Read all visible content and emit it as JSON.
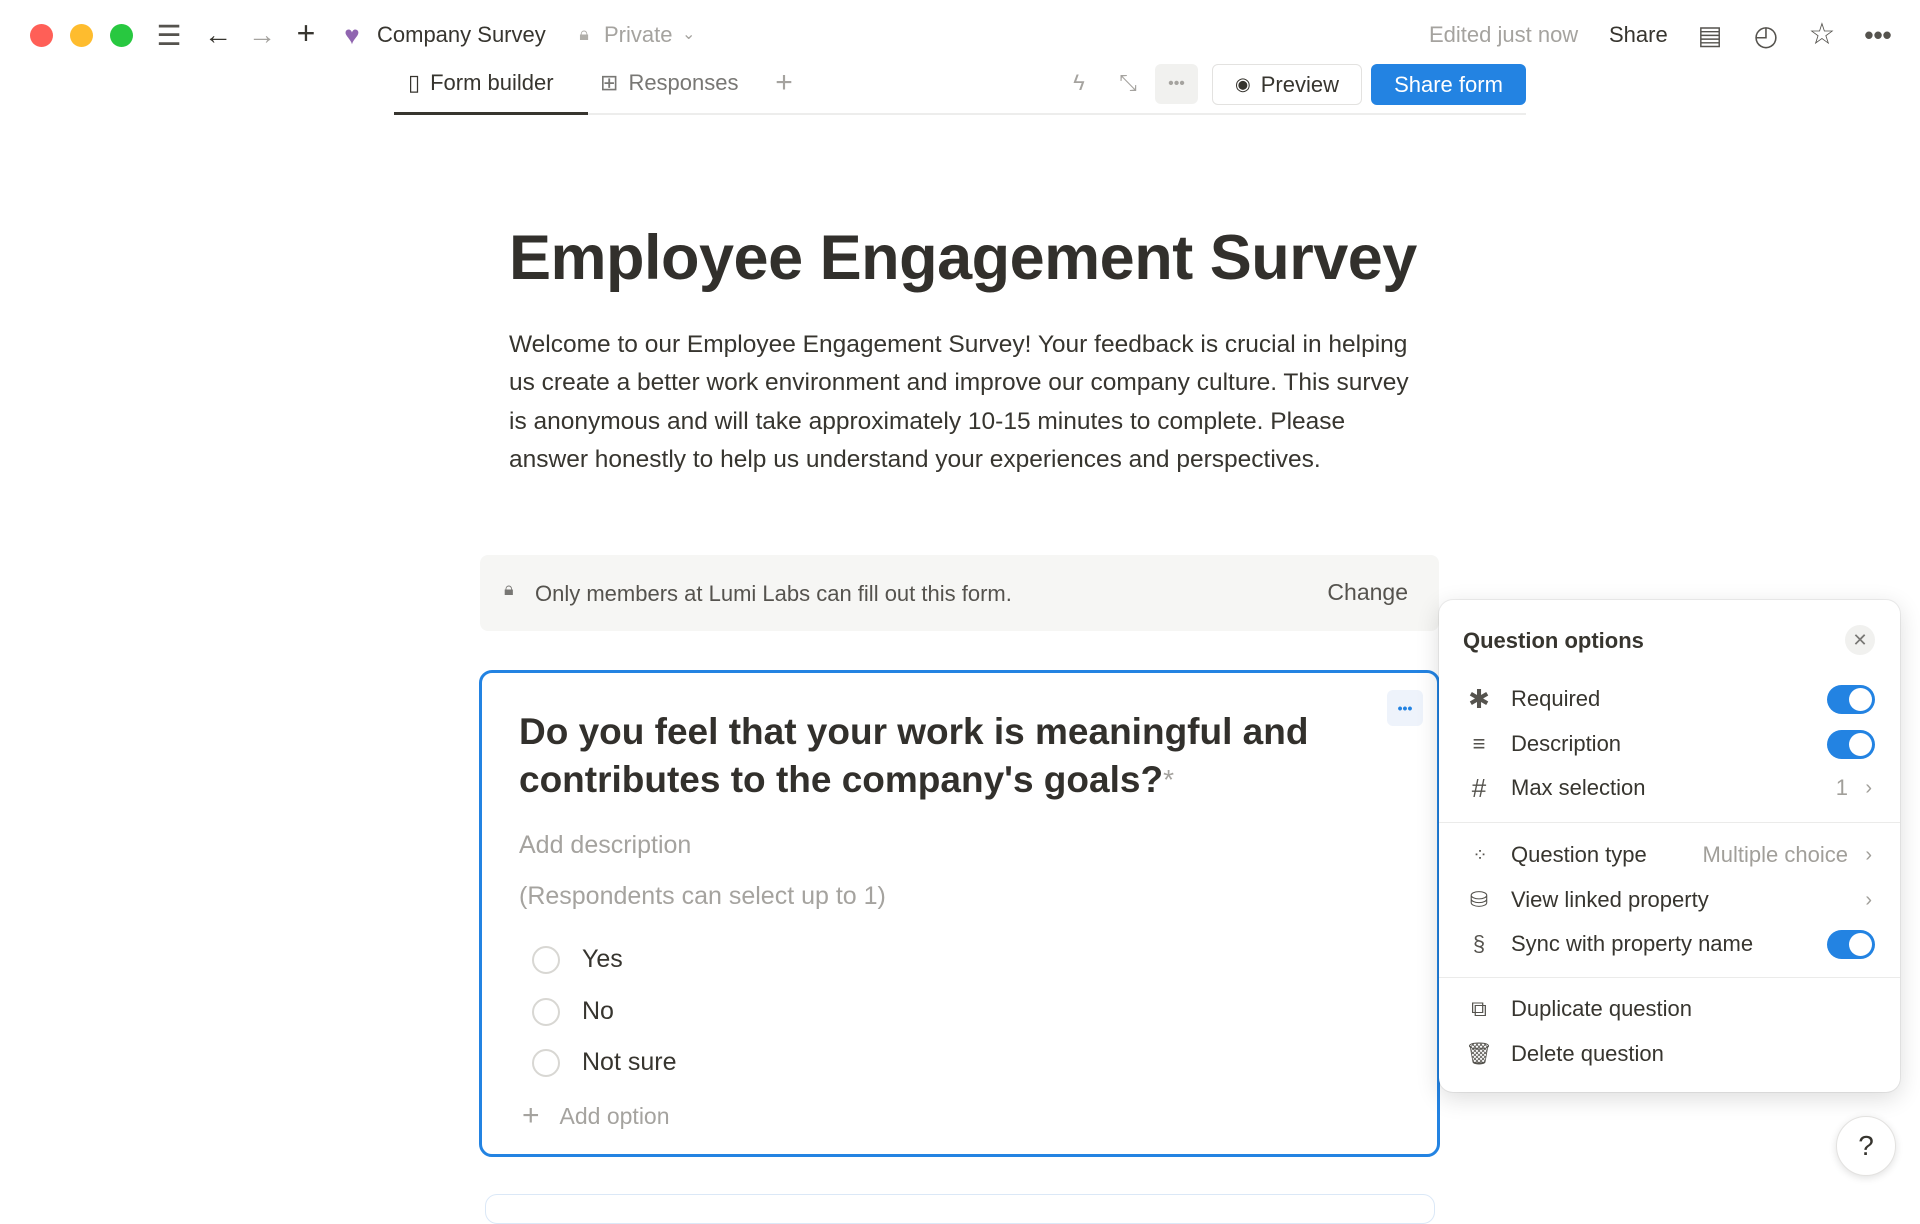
{
  "window": {
    "traffic_lights": [
      "#ff5f57",
      "#febc2e",
      "#28c840"
    ]
  },
  "topbar": {
    "page_title": "Company Survey",
    "privacy": "Private",
    "edited": "Edited just now",
    "share": "Share",
    "icons": [
      "menu-icon",
      "back-arrow-icon",
      "forward-arrow-icon",
      "plus-icon",
      "heart-pulse-icon",
      "lock-icon",
      "comment-icon",
      "clock-icon",
      "star-icon",
      "more-icon"
    ]
  },
  "tabs": [
    {
      "label": "Form builder",
      "icon": "form-icon",
      "active": true
    },
    {
      "label": "Responses",
      "icon": "table-icon",
      "active": false
    }
  ],
  "toolbar": {
    "preview": "Preview",
    "share_form": "Share form",
    "accent": "#2383e2"
  },
  "form": {
    "title": "Employee Engagement Survey",
    "intro": "Welcome to our Employee Engagement Survey! Your feedback is crucial in helping us create a better work environment and improve our company culture. This survey is anonymous and will take approximately 10-15 minutes to complete. Please answer honestly to help us understand your experiences and perspectives.",
    "access_notice": "Only members at Lumi Labs can fill out this form.",
    "access_change": "Change",
    "question": {
      "text": "Do you feel that your work is meaningful and contributes to the company's goals?",
      "required_mark": "*",
      "description_placeholder": "Add description",
      "hint": "(Respondents can select up to 1)",
      "options": [
        "Yes",
        "No",
        "Not sure"
      ],
      "add_option": "Add option"
    }
  },
  "panel": {
    "title": "Question options",
    "required": {
      "label": "Required",
      "on": true
    },
    "description": {
      "label": "Description",
      "on": true
    },
    "max_selection": {
      "label": "Max selection",
      "value": "1"
    },
    "question_type": {
      "label": "Question type",
      "value": "Multiple choice"
    },
    "linked_property": {
      "label": "View linked property"
    },
    "sync": {
      "label": "Sync with property name",
      "on": true
    },
    "duplicate": "Duplicate question",
    "delete": "Delete question"
  }
}
